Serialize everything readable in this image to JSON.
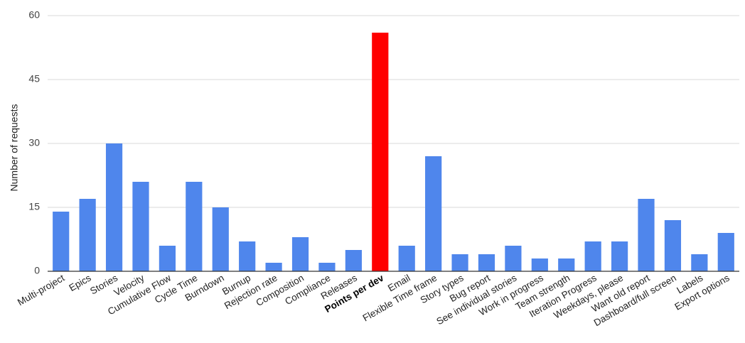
{
  "chart_data": {
    "type": "bar",
    "title": "",
    "xlabel": "",
    "ylabel": "Number of requests",
    "ylim": [
      0,
      60
    ],
    "yticks": [
      0,
      15,
      30,
      45,
      60
    ],
    "grid": true,
    "categories": [
      "Multi-project",
      "Epics",
      "Stories",
      "Velocity",
      "Cumulative Flow",
      "Cycle Time",
      "Burndown",
      "Burnup",
      "Rejection rate",
      "Composition",
      "Compliance",
      "Releases",
      "Points per dev",
      "Email",
      "Flexible Time frame",
      "Story types",
      "Bug report",
      "See individual stories",
      "Work in progress",
      "Team strength",
      "Iteration Progress",
      "Weekdays, please",
      "Want old report",
      "Dashboard/full screen",
      "Labels",
      "Export options"
    ],
    "values": [
      14,
      17,
      30,
      21,
      6,
      21,
      15,
      7,
      2,
      8,
      2,
      5,
      56,
      6,
      27,
      4,
      4,
      6,
      3,
      3,
      7,
      7,
      17,
      12,
      4,
      9
    ],
    "highlight": "Points per dev",
    "colors": {
      "bar": "#4f86ec",
      "highlight": "#ff0000",
      "grid": "#d9d9d9",
      "axis": "#333333"
    }
  }
}
